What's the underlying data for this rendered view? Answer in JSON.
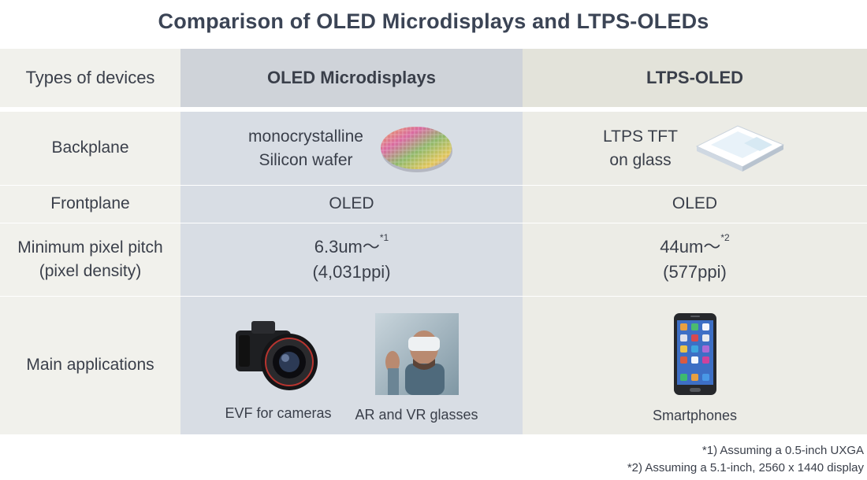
{
  "title": "Comparison of OLED Microdisplays and LTPS-OLEDs",
  "header": {
    "col0": "Types of devices",
    "col1": "OLED Microdisplays",
    "col2": "LTPS-OLED"
  },
  "rows": {
    "backplane": {
      "label": "Backplane",
      "col1_line1": "monocrystalline",
      "col1_line2": "Silicon wafer",
      "col1_icon": "silicon-wafer-icon",
      "col2_line1": "LTPS TFT",
      "col2_line2": "on glass",
      "col2_icon": "glass-panel-icon"
    },
    "frontplane": {
      "label": "Frontplane",
      "col1": "OLED",
      "col2": "OLED"
    },
    "pitch": {
      "label_line1": "Minimum pixel pitch",
      "label_line2": "(pixel density)",
      "col1_line1": "6.3um～",
      "col1_sup": "*1",
      "col1_line2": "(4,031ppi)",
      "col2_line1": "44um～",
      "col2_sup": "*2",
      "col2_line2": "(577ppi)"
    },
    "applications": {
      "label": "Main applications",
      "app1_label": "EVF for cameras",
      "app1_icon": "camera-icon",
      "app2_label": "AR and VR glasses",
      "app2_icon": "vr-headset-photo",
      "app3_label": "Smartphones",
      "app3_icon": "smartphone-icon"
    }
  },
  "notes": {
    "note1": "*1) Assuming a 0.5-inch UXGA",
    "note2": "*2) Assuming a 5.1-inch, 2560 x 1440 display"
  }
}
